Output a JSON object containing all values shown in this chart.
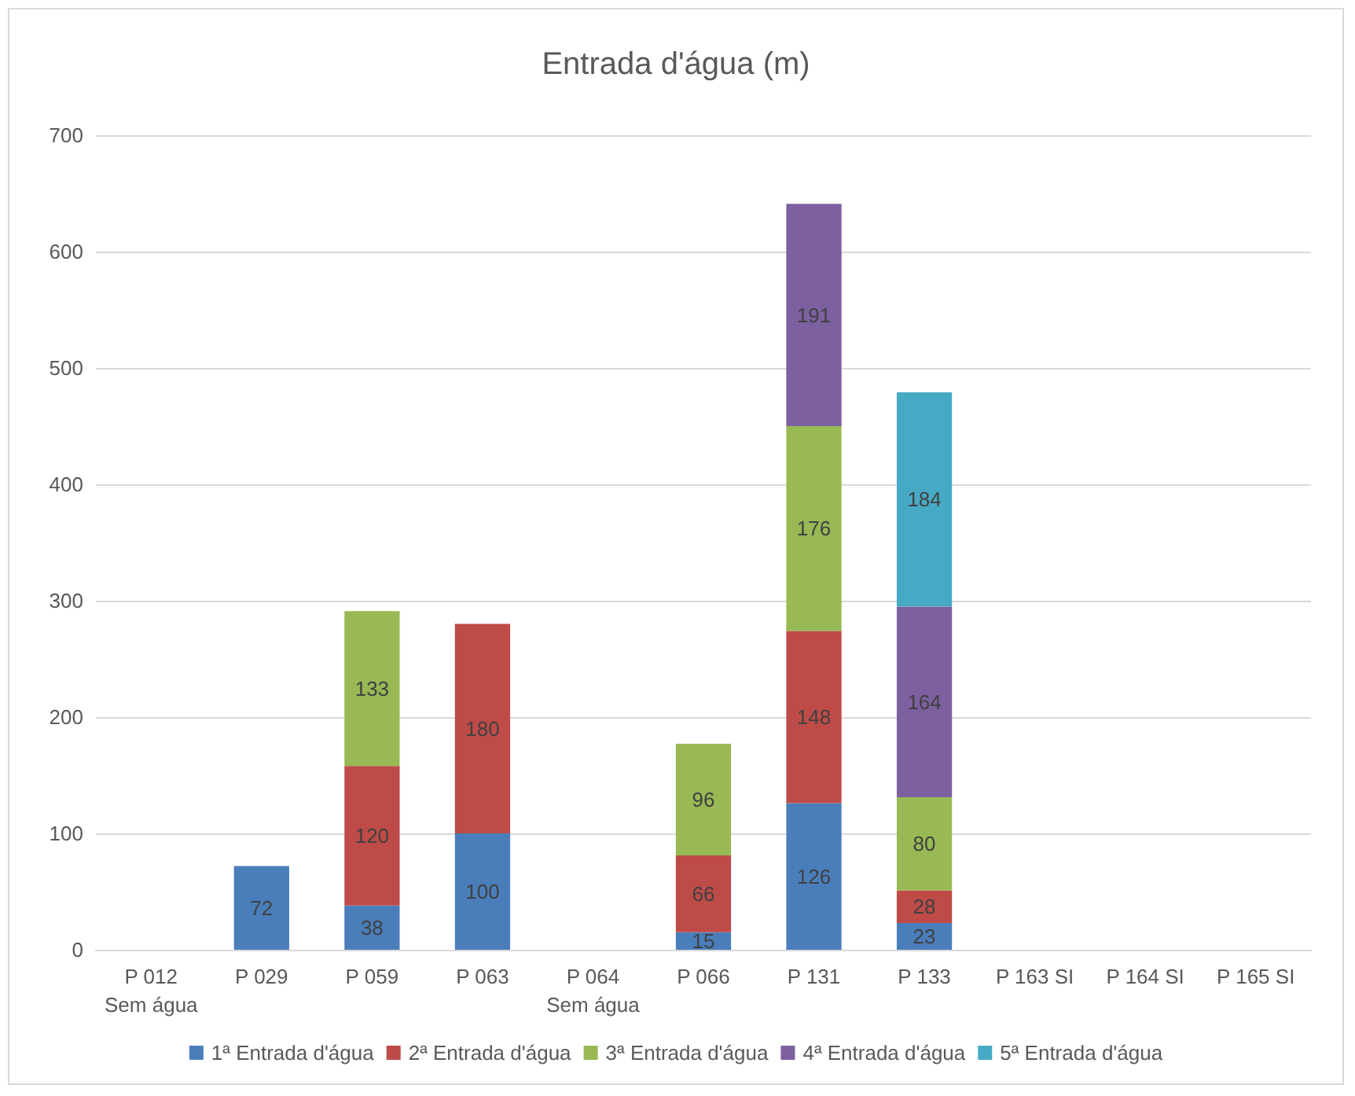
{
  "chart_data": {
    "type": "bar",
    "title": "Entrada d'água (m)",
    "categories": [
      "P 012\nSem água",
      "P 029",
      "P 059",
      "P 063",
      "P 064\nSem água",
      "P 066",
      "P 131",
      "P 133",
      "P 163 SI",
      "P 164 SI",
      "P 165 SI"
    ],
    "series": [
      {
        "name": "1ª Entrada d'água",
        "color": "#4a7ebb",
        "values": [
          null,
          72,
          38,
          100,
          null,
          15,
          126,
          23,
          null,
          null,
          null
        ]
      },
      {
        "name": "2ª Entrada d'água",
        "color": "#be4b48",
        "values": [
          null,
          null,
          120,
          180,
          null,
          66,
          148,
          28,
          null,
          null,
          null
        ]
      },
      {
        "name": "3ª Entrada d'água",
        "color": "#98b954",
        "values": [
          null,
          null,
          133,
          null,
          null,
          96,
          176,
          80,
          null,
          null,
          null
        ]
      },
      {
        "name": "4ª Entrada d'água",
        "color": "#7d60a0",
        "values": [
          null,
          null,
          null,
          null,
          null,
          null,
          191,
          164,
          null,
          null,
          null
        ]
      },
      {
        "name": "5ª Entrada d'água",
        "color": "#46aac5",
        "values": [
          null,
          null,
          null,
          null,
          null,
          null,
          null,
          184,
          null,
          null,
          null
        ]
      }
    ],
    "stacked": true,
    "data_labels": true,
    "ylim": [
      0,
      700
    ],
    "yticks": [
      0,
      100,
      200,
      300,
      400,
      500,
      600,
      700
    ],
    "grid": "y",
    "legend": "bottom"
  }
}
